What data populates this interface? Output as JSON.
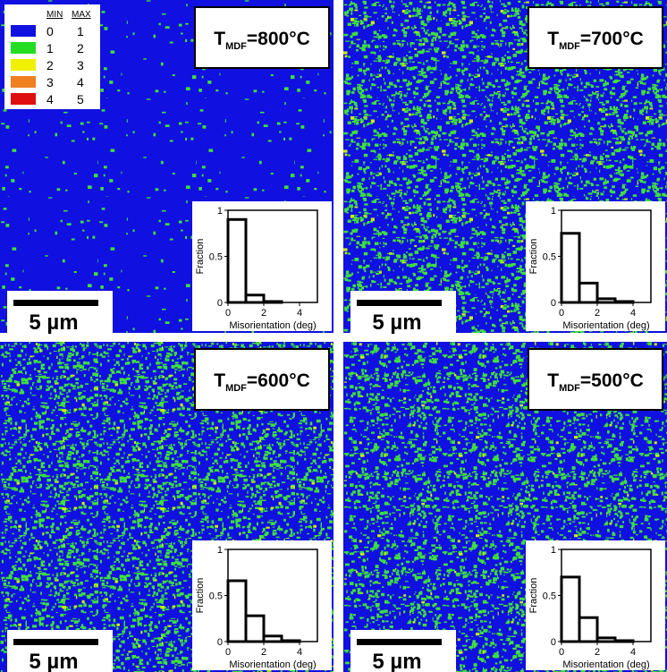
{
  "legend": {
    "headers": [
      "MIN",
      "MAX"
    ],
    "rows": [
      {
        "color": "#1010e0",
        "min": "0",
        "max": "1"
      },
      {
        "color": "#22dd22",
        "min": "1",
        "max": "2"
      },
      {
        "color": "#f0f000",
        "min": "2",
        "max": "3"
      },
      {
        "color": "#f08020",
        "min": "3",
        "max": "4"
      },
      {
        "color": "#e01010",
        "min": "4",
        "max": "5"
      }
    ]
  },
  "chart_data": [
    {
      "type": "histogram",
      "title_main": "T",
      "title_sub": "MDF",
      "title_rest": "=800°C",
      "scale_label": "5 µm",
      "bins": [
        0,
        1,
        2,
        3,
        4,
        5
      ],
      "values": [
        0.9,
        0.08,
        0.01,
        0,
        0
      ],
      "color": "#000000",
      "xlim": [
        0,
        5
      ],
      "ylim": [
        0,
        1
      ],
      "xticks": [
        0,
        2,
        4
      ],
      "yticks": [
        0,
        0.5,
        1
      ],
      "xlabel": "Misorientation (deg)",
      "ylabel": "Fraction"
    },
    {
      "type": "histogram",
      "title_main": "T",
      "title_sub": "MDF",
      "title_rest": "=700°C",
      "scale_label": "5 µm",
      "bins": [
        0,
        1,
        2,
        3,
        4,
        5
      ],
      "values": [
        0.75,
        0.21,
        0.04,
        0.01,
        0
      ],
      "color": "#000000",
      "xlim": [
        0,
        5
      ],
      "ylim": [
        0,
        1
      ],
      "xticks": [
        0,
        2,
        4
      ],
      "yticks": [
        0,
        0.5,
        1
      ],
      "xlabel": "Misorientation (deg)",
      "ylabel": "Fraction"
    },
    {
      "type": "histogram",
      "title_main": "T",
      "title_sub": "MDF",
      "title_rest": "=600°C",
      "scale_label": "5 µm",
      "bins": [
        0,
        1,
        2,
        3,
        4,
        5
      ],
      "values": [
        0.66,
        0.28,
        0.06,
        0.01,
        0
      ],
      "color": "#000000",
      "xlim": [
        0,
        5
      ],
      "ylim": [
        0,
        1
      ],
      "xticks": [
        0,
        2,
        4
      ],
      "yticks": [
        0,
        0.5,
        1
      ],
      "xlabel": "Misorientation (deg)",
      "ylabel": "Fraction"
    },
    {
      "type": "histogram",
      "title_main": "T",
      "title_sub": "MDF",
      "title_rest": "=500°C",
      "scale_label": "5 µm",
      "bins": [
        0,
        1,
        2,
        3,
        4,
        5
      ],
      "values": [
        0.7,
        0.26,
        0.04,
        0.01,
        0
      ],
      "color": "#000000",
      "xlim": [
        0,
        5
      ],
      "ylim": [
        0,
        1
      ],
      "xticks": [
        0,
        2,
        4
      ],
      "yticks": [
        0,
        0.5,
        1
      ],
      "xlabel": "Misorientation (deg)",
      "ylabel": "Fraction"
    }
  ]
}
